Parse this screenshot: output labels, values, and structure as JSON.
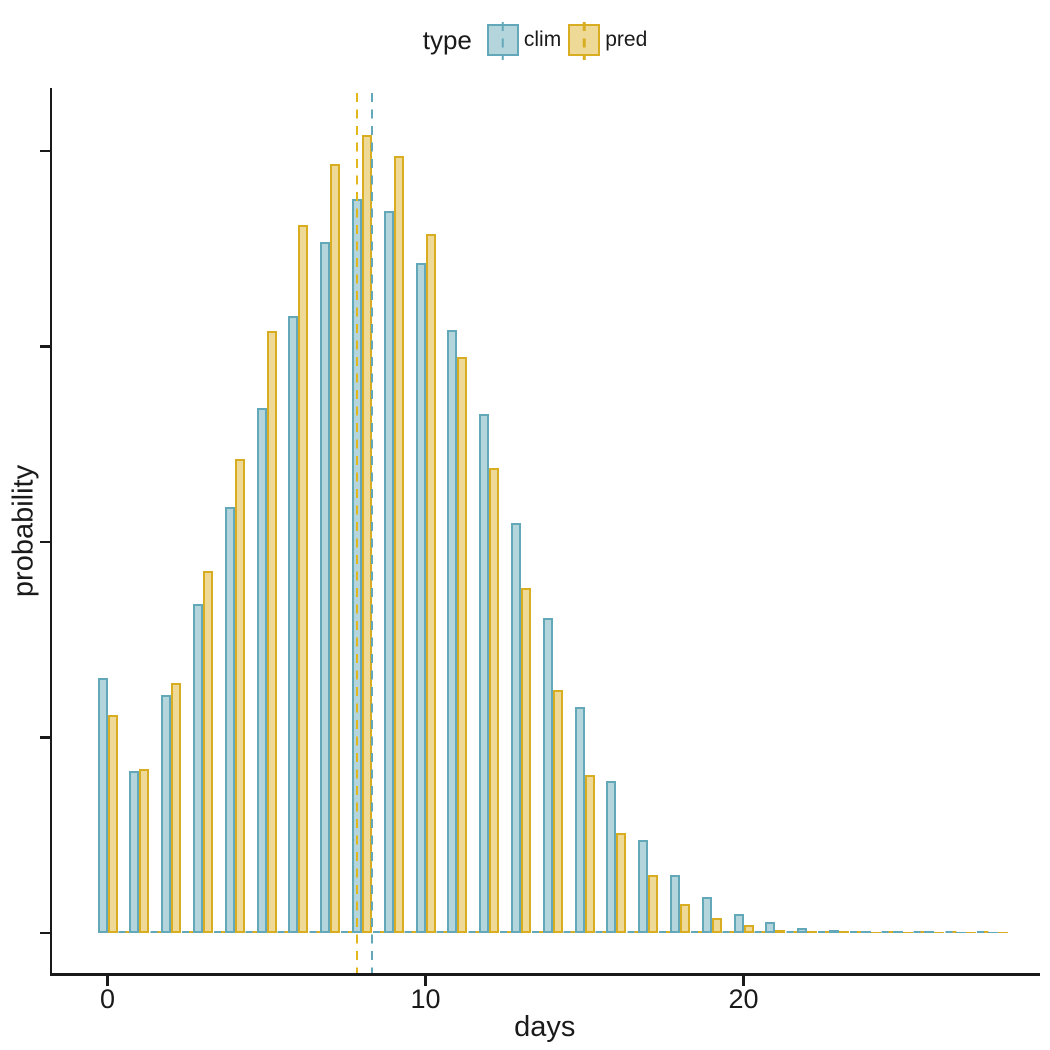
{
  "legend": {
    "title": "type",
    "items": [
      {
        "id": "clim",
        "label": "clim"
      },
      {
        "id": "pred",
        "label": "pred"
      }
    ]
  },
  "axes": {
    "x": {
      "title": "days",
      "tick_labels": [
        "0",
        "10",
        "20"
      ],
      "tick_values": [
        0,
        10,
        20
      ]
    },
    "y": {
      "title": "probability",
      "tick_values": [
        0,
        0.025,
        0.05,
        0.075,
        0.1
      ],
      "tick_labels": []
    }
  },
  "chart_data": {
    "type": "bar",
    "subtype": "dodged-histogram",
    "title": "",
    "xlabel": "days",
    "ylabel": "probability",
    "categories": [
      0,
      1,
      2,
      3,
      4,
      5,
      6,
      7,
      8,
      9,
      10,
      11,
      12,
      13,
      14,
      15,
      16,
      17,
      18,
      19,
      20,
      21,
      22,
      23,
      24,
      25,
      26,
      27,
      28
    ],
    "xlim": [
      -1.7,
      29.3
    ],
    "ylim": [
      0,
      0.108
    ],
    "grid": false,
    "legend_position": "top",
    "y_axis_labeled": false,
    "series": [
      {
        "name": "clim",
        "fill": "#B5D5DC",
        "stroke": "#63A8B9",
        "mean": 8.32,
        "values": [
          0.0326,
          0.0207,
          0.0304,
          0.0421,
          0.0545,
          0.0671,
          0.0789,
          0.0883,
          0.0939,
          0.0923,
          0.0857,
          0.0771,
          0.0664,
          0.0524,
          0.0403,
          0.0289,
          0.0194,
          0.0119,
          0.0074,
          0.0046,
          0.0024,
          0.0014,
          0.0007,
          0.0004,
          0.0003,
          0.0002,
          0.0002,
          0.0001,
          0.0001
        ]
      },
      {
        "name": "pred",
        "fill": "#EEDA96",
        "stroke": "#D8AD22",
        "mean": 7.84,
        "values": [
          0.0279,
          0.021,
          0.032,
          0.0463,
          0.0606,
          0.077,
          0.0905,
          0.0983,
          0.1021,
          0.0993,
          0.0894,
          0.0737,
          0.0595,
          0.0441,
          0.0311,
          0.0202,
          0.0128,
          0.0074,
          0.0037,
          0.0019,
          0.001,
          0.0004,
          0.0003,
          0.0002,
          0.0001,
          0.0001,
          0.0001,
          0.0001,
          0.0001
        ]
      }
    ],
    "mean_lines": [
      {
        "series": "clim",
        "value": 8.32,
        "style": "dashed",
        "color": "#63A8B9"
      },
      {
        "series": "pred",
        "value": 7.84,
        "style": "dashed",
        "color": "#E2B71C"
      }
    ],
    "zero_baseline": {
      "style": "dashed",
      "colors": [
        "#63A8B9",
        "#D8AD22"
      ]
    }
  }
}
